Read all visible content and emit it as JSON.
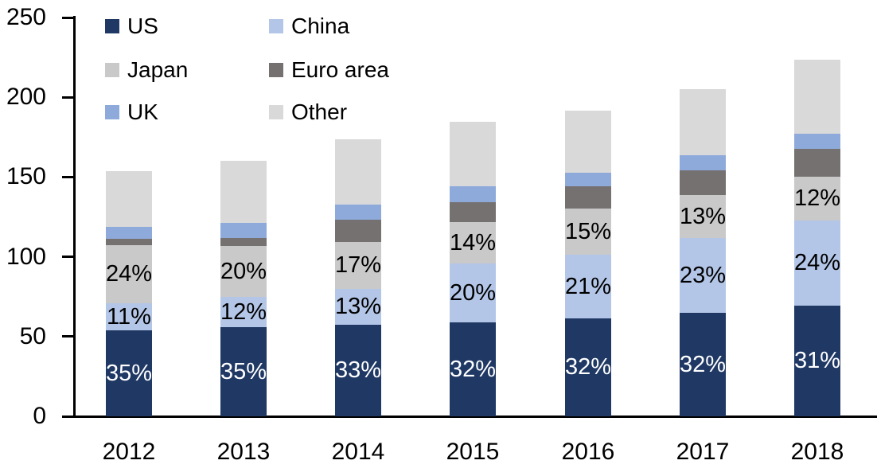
{
  "chart_data": {
    "type": "bar",
    "subtype": "stacked",
    "title": "",
    "xlabel": "",
    "ylabel": "",
    "categories": [
      "2012",
      "2013",
      "2014",
      "2015",
      "2016",
      "2017",
      "2018"
    ],
    "series": [
      {
        "name": "US",
        "color": "#1F3864",
        "values": [
          54.0,
          56.0,
          57.5,
          59.0,
          61.5,
          65.0,
          69.5
        ],
        "labels": [
          "35%",
          "35%",
          "33%",
          "32%",
          "32%",
          "32%",
          "31%"
        ],
        "label_color": "#FFFFFF"
      },
      {
        "name": "China",
        "color": "#B4C6E7",
        "values": [
          17.0,
          19.0,
          22.5,
          37.0,
          40.0,
          47.0,
          53.5
        ],
        "labels": [
          "11%",
          "12%",
          "13%",
          "20%",
          "21%",
          "23%",
          "24%"
        ],
        "label_color": "#000000"
      },
      {
        "name": "Japan",
        "color": "#C9C9C9",
        "values": [
          36.5,
          32.0,
          29.5,
          26.0,
          28.5,
          26.5,
          27.0
        ],
        "labels": [
          "24%",
          "20%",
          "17%",
          "14%",
          "15%",
          "13%",
          "12%"
        ],
        "label_color": "#000000"
      },
      {
        "name": "Euro area",
        "color": "#767171",
        "values": [
          4.0,
          5.0,
          14.0,
          12.0,
          14.0,
          15.5,
          17.5
        ],
        "labels": null,
        "label_color": null
      },
      {
        "name": "UK",
        "color": "#8EAADB",
        "values": [
          7.5,
          9.5,
          9.0,
          10.0,
          8.5,
          9.5,
          9.5
        ],
        "labels": null,
        "label_color": null
      },
      {
        "name": "Other",
        "color": "#D9D9D9",
        "values": [
          34.5,
          38.5,
          41.0,
          40.5,
          39.0,
          41.5,
          46.5
        ],
        "labels": null,
        "label_color": null
      }
    ],
    "approx_totals": [
      153.5,
      160.0,
      173.5,
      184.5,
      191.5,
      205.0,
      223.5
    ],
    "yticks": [
      0,
      50,
      100,
      150,
      200,
      250
    ],
    "ylim": [
      0,
      250
    ],
    "grid": false,
    "legend": {
      "position": "top-left",
      "columns": 2,
      "order": [
        "US",
        "China",
        "Japan",
        "Euro area",
        "UK",
        "Other"
      ]
    },
    "axis_color": "#000000",
    "text_color": "#000000",
    "background": "#FFFFFF"
  }
}
